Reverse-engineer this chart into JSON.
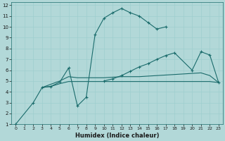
{
  "xlabel": "Humidex (Indice chaleur)",
  "bg_color": "#b2d8d8",
  "line_color": "#1a6b6b",
  "grid_color": "#9ecece",
  "xlim": [
    -0.5,
    23.5
  ],
  "ylim": [
    1,
    12.3
  ],
  "xticks": [
    0,
    1,
    2,
    3,
    4,
    5,
    6,
    7,
    8,
    9,
    10,
    11,
    12,
    13,
    14,
    15,
    16,
    17,
    18,
    19,
    20,
    21,
    22,
    23
  ],
  "yticks": [
    1,
    2,
    3,
    4,
    5,
    6,
    7,
    8,
    9,
    10,
    11,
    12
  ],
  "series": [
    {
      "x": [
        0,
        2,
        3,
        4,
        5,
        6,
        7,
        8,
        9,
        10,
        11,
        12,
        13,
        14,
        15,
        16,
        17
      ],
      "y": [
        1,
        3,
        4.4,
        4.5,
        4.9,
        6.2,
        2.7,
        3.5,
        9.3,
        10.8,
        11.3,
        11.7,
        11.3,
        11.0,
        10.4,
        9.8,
        10.0
      ]
    },
    {
      "x": [
        3,
        4,
        5,
        6,
        7,
        8,
        9,
        10,
        11,
        12,
        13,
        14,
        15,
        16,
        17,
        18,
        19,
        20,
        21,
        22,
        23
      ],
      "y": [
        4.4,
        4.7,
        5.0,
        5.4,
        5.3,
        5.3,
        5.3,
        5.3,
        5.35,
        5.4,
        5.4,
        5.4,
        5.45,
        5.5,
        5.55,
        5.6,
        5.65,
        5.7,
        5.75,
        5.5,
        4.85
      ]
    },
    {
      "x": [
        3,
        4,
        5,
        6,
        7,
        8,
        9,
        10,
        11,
        12,
        13,
        14,
        15,
        16,
        17,
        18,
        19,
        20,
        21,
        22,
        23
      ],
      "y": [
        4.4,
        4.5,
        4.75,
        4.95,
        4.95,
        4.95,
        4.95,
        4.95,
        4.95,
        4.95,
        4.95,
        4.95,
        4.95,
        4.95,
        4.95,
        4.95,
        4.95,
        4.95,
        4.95,
        4.95,
        4.85
      ]
    },
    {
      "x": [
        10,
        11,
        12,
        13,
        14,
        15,
        16,
        17,
        18,
        20,
        21,
        22,
        23
      ],
      "y": [
        5.0,
        5.2,
        5.5,
        5.9,
        6.3,
        6.6,
        7.0,
        7.35,
        7.6,
        6.0,
        7.7,
        7.4,
        4.85
      ]
    }
  ],
  "marker_series": [
    0,
    3
  ],
  "marker_x": [
    [
      0,
      2,
      3,
      4,
      5,
      6,
      7,
      8,
      9,
      10,
      11,
      12,
      13,
      14,
      15,
      16,
      17
    ],
    [
      10,
      11,
      12,
      13,
      14,
      15,
      16,
      17,
      18,
      20,
      21,
      22,
      23
    ]
  ],
  "marker_y": [
    [
      1,
      3,
      4.4,
      4.5,
      4.9,
      6.2,
      2.7,
      3.5,
      9.3,
      10.8,
      11.3,
      11.7,
      11.3,
      11.0,
      10.4,
      9.8,
      10.0
    ],
    [
      5.0,
      5.2,
      5.5,
      5.9,
      6.3,
      6.6,
      7.0,
      7.35,
      7.6,
      6.0,
      7.7,
      7.4,
      4.85
    ]
  ]
}
